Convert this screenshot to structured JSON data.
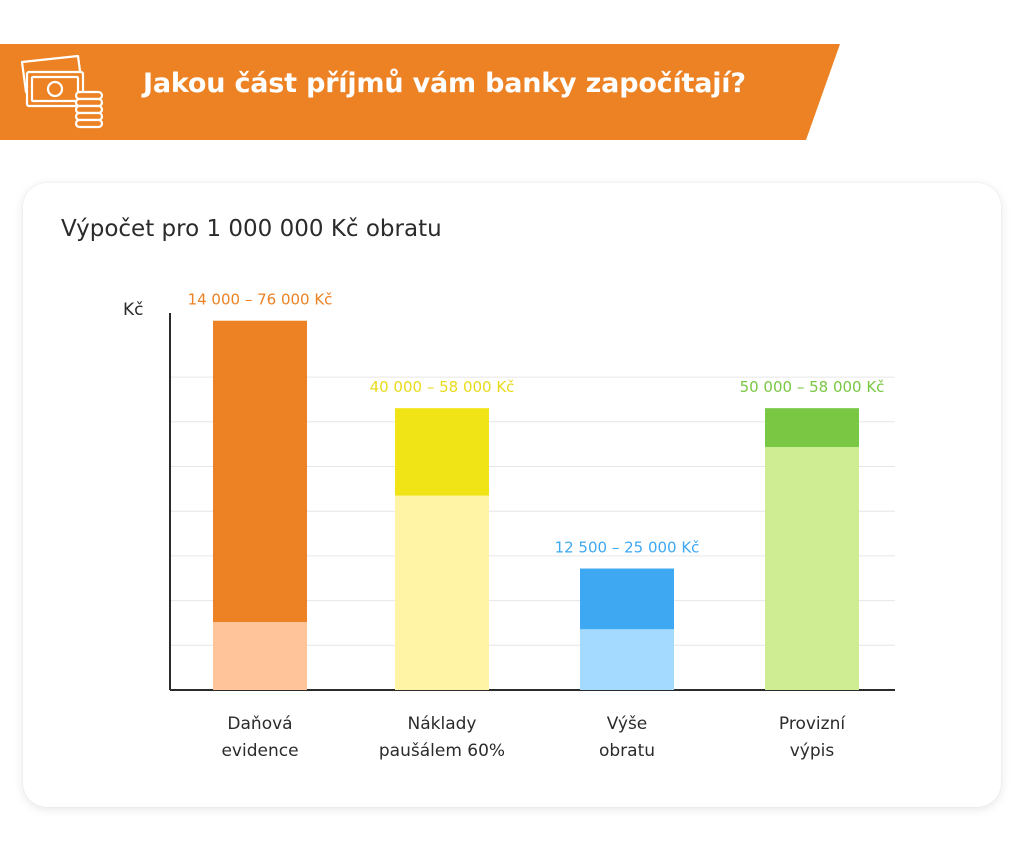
{
  "banner": {
    "title": "Jakou část příjmů vám banky započítají?",
    "icon": "money-coins-icon",
    "color": "#EC8224"
  },
  "card": {
    "title": "Výpočet pro 1 000 000 Kč obratu"
  },
  "chart_data": {
    "type": "bar",
    "stacked": true,
    "ylabel": "Kč",
    "xlabel": "",
    "ylim": [
      0,
      78000
    ],
    "grid": true,
    "categories": [
      "Daňová evidence",
      "Náklady paušálem 60%",
      "Výše obratu",
      "Provizní výpis"
    ],
    "category_lines": [
      [
        "Daňová",
        "evidence"
      ],
      [
        "Náklady",
        "paušálem 60%"
      ],
      [
        "Výše",
        "obratu"
      ],
      [
        "Provizní",
        "výpis"
      ]
    ],
    "ranges": [
      {
        "min": 14000,
        "max": 76000,
        "label": "14 000 – 76 000 Kč",
        "light": "#FFC49A",
        "dark": "#EC8224",
        "label_color": "#EC8224"
      },
      {
        "min": 40000,
        "max": 58000,
        "label": "40 000 – 58 000 Kč",
        "light": "#FFF4A6",
        "dark": "#F1E416",
        "label_color": "#E8DB1C"
      },
      {
        "min": 12500,
        "max": 25000,
        "label": "12 500 – 25 000 Kč",
        "light": "#A4DAFF",
        "dark": "#3EA8F2",
        "label_color": "#3EA8F2"
      },
      {
        "min": 50000,
        "max": 58000,
        "label": "50 000 – 58 000 Kč",
        "light": "#CFEE93",
        "dark": "#79C742",
        "label_color": "#79C742"
      }
    ]
  }
}
